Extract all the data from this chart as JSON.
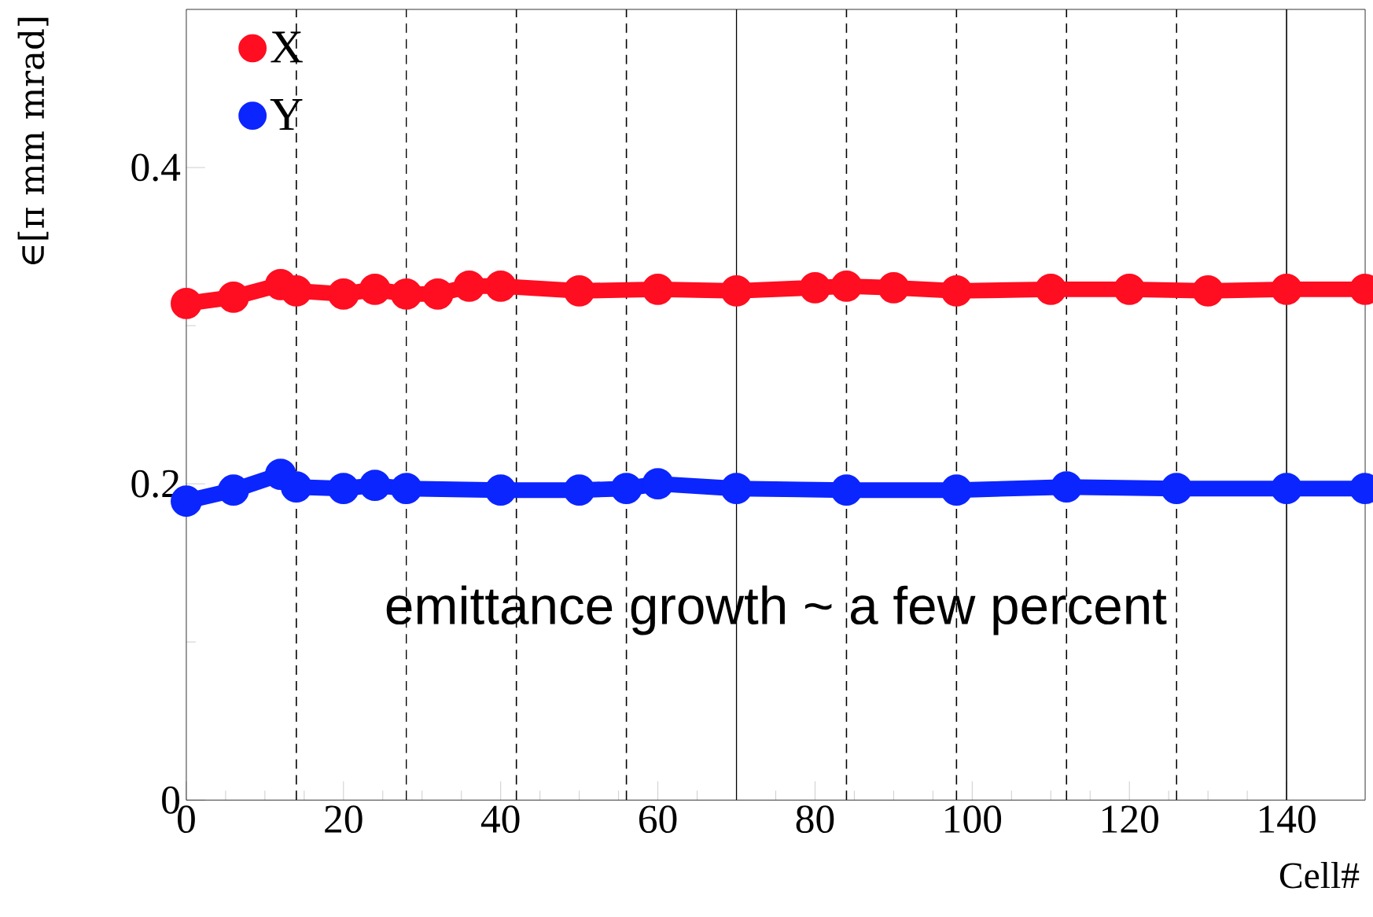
{
  "chart_data": {
    "type": "line",
    "xlabel": "Cell#",
    "ylabel": "∈[π mm mrad]",
    "xlim": [
      0,
      150
    ],
    "ylim": [
      0,
      0.5
    ],
    "xticks": [
      0,
      20,
      40,
      60,
      80,
      100,
      120,
      140
    ],
    "yticks": [
      0,
      0.2,
      0.4
    ],
    "marker": "circle",
    "legend": "top left",
    "series": [
      {
        "name": "X",
        "color": "#ff0d20",
        "x": [
          0,
          6,
          12,
          14,
          20,
          24,
          28,
          32,
          36,
          40,
          50,
          60,
          70,
          80,
          84,
          90,
          98,
          110,
          120,
          130,
          140,
          150
        ],
        "values": [
          0.314,
          0.318,
          0.326,
          0.322,
          0.32,
          0.323,
          0.32,
          0.32,
          0.325,
          0.325,
          0.322,
          0.323,
          0.322,
          0.324,
          0.325,
          0.324,
          0.322,
          0.323,
          0.323,
          0.322,
          0.323,
          0.323
        ]
      },
      {
        "name": "Y",
        "color": "#0b25ff",
        "x": [
          0,
          6,
          12,
          14,
          20,
          24,
          28,
          40,
          50,
          56,
          60,
          70,
          84,
          98,
          112,
          126,
          140,
          150
        ],
        "values": [
          0.189,
          0.196,
          0.206,
          0.198,
          0.197,
          0.199,
          0.197,
          0.196,
          0.196,
          0.197,
          0.2,
          0.197,
          0.196,
          0.196,
          0.198,
          0.197,
          0.197,
          0.197
        ]
      }
    ],
    "ref_lines": [
      {
        "axis": "x",
        "value": 14,
        "line_style": "dashed",
        "color": "#000000"
      },
      {
        "axis": "x",
        "value": 28,
        "line_style": "dashed",
        "color": "#000000"
      },
      {
        "axis": "x",
        "value": 42,
        "line_style": "dashed",
        "color": "#000000"
      },
      {
        "axis": "x",
        "value": 56,
        "line_style": "dashed",
        "color": "#000000"
      },
      {
        "axis": "x",
        "value": 70,
        "line_style": "solid",
        "color": "#000000"
      },
      {
        "axis": "x",
        "value": 84,
        "line_style": "dashed",
        "color": "#000000"
      },
      {
        "axis": "x",
        "value": 98,
        "line_style": "dashed",
        "color": "#000000"
      },
      {
        "axis": "x",
        "value": 112,
        "line_style": "dashed",
        "color": "#000000"
      },
      {
        "axis": "x",
        "value": 126,
        "line_style": "dashed",
        "color": "#000000"
      },
      {
        "axis": "x",
        "value": 140,
        "line_style": "solid",
        "color": "#000000"
      }
    ],
    "annotations": [
      "emittance growth ~ a few percent"
    ]
  }
}
